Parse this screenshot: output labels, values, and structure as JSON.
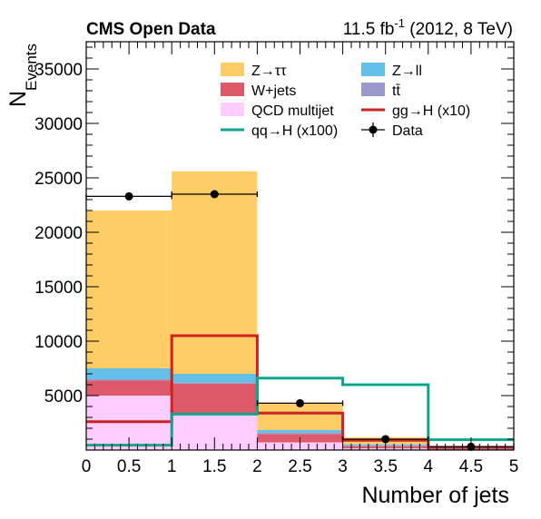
{
  "chart_data": {
    "type": "bar",
    "stacked": true,
    "header": {
      "left": "CMS Open Data",
      "right_prefix": "11.5 fb",
      "right_sup": "-1",
      "right_suffix": " (2012, 8 TeV)"
    },
    "xlabel": "Number of jets",
    "ylabel_main": "N",
    "ylabel_sub": "Events",
    "xlim": [
      0,
      5
    ],
    "ylim": [
      0,
      37500
    ],
    "xticks": [
      "0",
      "0.5",
      "1",
      "1.5",
      "2",
      "2.5",
      "3",
      "3.5",
      "4",
      "4.5",
      "5"
    ],
    "xtick_values": [
      0,
      0.5,
      1,
      1.5,
      2,
      2.5,
      3,
      3.5,
      4,
      4.5,
      5
    ],
    "yticks": [
      "5000",
      "10000",
      "15000",
      "20000",
      "25000",
      "30000",
      "35000"
    ],
    "ytick_values": [
      5000,
      10000,
      15000,
      20000,
      25000,
      30000,
      35000
    ],
    "bin_edges": [
      0,
      1,
      2,
      3,
      4,
      5
    ],
    "stack": [
      {
        "name": "QCD multijet",
        "color": "#ffccff",
        "values": [
          5000,
          3400,
          700,
          150,
          40
        ]
      },
      {
        "name": "W+jets",
        "color": "#de5a6a",
        "values": [
          1400,
          2700,
          750,
          200,
          50
        ]
      },
      {
        "name": "tt̄",
        "color": "#9999cc",
        "values": [
          100,
          100,
          150,
          100,
          40
        ]
      },
      {
        "name": "Z→ll",
        "color": "#64c0e8",
        "values": [
          1000,
          800,
          250,
          80,
          20
        ]
      },
      {
        "name": "Z→ττ",
        "color": "#ffcc66",
        "values": [
          14500,
          18600,
          2500,
          650,
          150
        ]
      }
    ],
    "lines": [
      {
        "name": "gg→H (x10)",
        "color": "#cc2222",
        "values": [
          2600,
          10500,
          3400,
          900,
          250
        ]
      },
      {
        "name": "qq→H (x100)",
        "color": "#0ea58a",
        "values": [
          450,
          3300,
          6600,
          6000,
          950
        ]
      }
    ],
    "data_points": {
      "name": "Data",
      "x": [
        0.5,
        1.5,
        2.5,
        3.5,
        4.5
      ],
      "y": [
        23300,
        23500,
        4300,
        1000,
        300
      ],
      "x_err": 0.5
    },
    "legend": {
      "placement": "top-right",
      "entries": [
        {
          "label": "Z→ττ",
          "kind": "fill",
          "color": "#ffcc66"
        },
        {
          "label": "Z→ll",
          "kind": "fill",
          "color": "#64c0e8"
        },
        {
          "label": "W+jets",
          "kind": "fill",
          "color": "#de5a6a"
        },
        {
          "label": "tt̄",
          "kind": "fill",
          "color": "#9999cc"
        },
        {
          "label": "QCD multijet",
          "kind": "fill",
          "color": "#ffccff"
        },
        {
          "label": "gg→H (x10)",
          "kind": "line",
          "color": "#cc2222"
        },
        {
          "label": "qq→H (x100)",
          "kind": "line",
          "color": "#0ea58a"
        },
        {
          "label": "Data",
          "kind": "marker",
          "color": "#000000"
        }
      ]
    }
  }
}
